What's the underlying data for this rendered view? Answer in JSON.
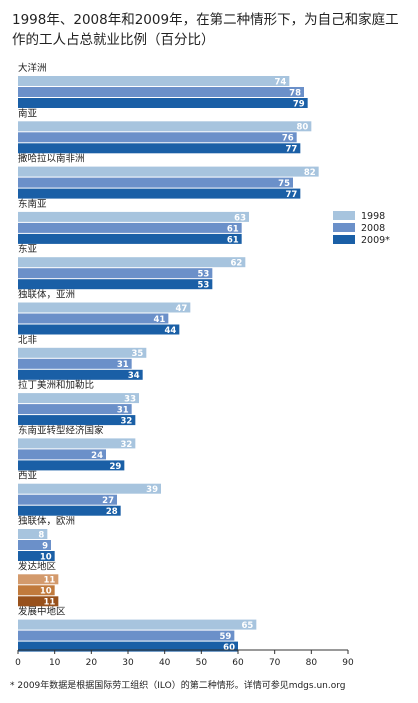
{
  "chart_data": {
    "type": "bar",
    "orientation": "horizontal",
    "title": "1998年、2008年和2009年，在第二种情形下，为自己和家庭工作的工人占总就业比例（百分比）",
    "title_lines": [
      "1998年、2008年和2009年，在第二种情形下，为自己和家庭工",
      "作的工人占总就业比例（百分比）"
    ],
    "categories": [
      "大洋洲",
      "南亚",
      "撒哈拉以南非洲",
      "东南亚",
      "东亚",
      "独联体，亚洲",
      "北非",
      "拉丁美洲和加勒比",
      "东南亚转型经济国家",
      "西亚",
      "独联体，欧洲",
      "发达地区",
      "发展中地区"
    ],
    "series": [
      {
        "name": "1998",
        "values": [
          74,
          80,
          82,
          63,
          62,
          47,
          35,
          33,
          32,
          39,
          8,
          11,
          65
        ]
      },
      {
        "name": "2008",
        "values": [
          78,
          76,
          75,
          61,
          53,
          41,
          31,
          31,
          24,
          27,
          9,
          10,
          59
        ]
      },
      {
        "name": "2009*",
        "values": [
          79,
          77,
          77,
          61,
          53,
          44,
          34,
          32,
          29,
          28,
          10,
          11,
          60
        ]
      }
    ],
    "xlim": [
      0,
      90
    ],
    "xticks": [
      0,
      10,
      20,
      30,
      40,
      50,
      60,
      70,
      80,
      90
    ],
    "xlabel": "",
    "ylabel": "",
    "legend_position": "right",
    "highlight_categories": [
      "发达地区"
    ],
    "grid": false,
    "colors": {
      "default": [
        "#a7c4de",
        "#6b90c9",
        "#1a5fa6"
      ],
      "highlight": [
        "#d39a6c",
        "#c17a3c",
        "#98511c"
      ],
      "text": "#222222",
      "bar_label": "#ffffff"
    },
    "footnote": "* 2009年数据是根据国际劳工组织（ILO）的第二种情形。详情可参见mdgs.un.org"
  }
}
